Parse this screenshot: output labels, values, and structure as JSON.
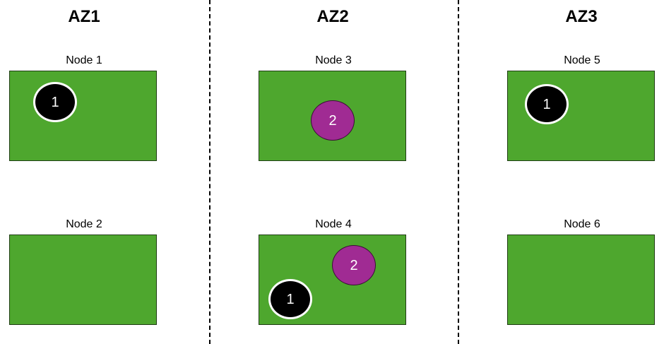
{
  "zones": [
    {
      "label": "AZ1"
    },
    {
      "label": "AZ2"
    },
    {
      "label": "AZ3"
    }
  ],
  "nodes": [
    {
      "label": "Node 1",
      "pods": [
        {
          "label": "1",
          "color": "#000000"
        }
      ]
    },
    {
      "label": "Node 2",
      "pods": []
    },
    {
      "label": "Node 3",
      "pods": [
        {
          "label": "2",
          "color": "#a02b93"
        }
      ]
    },
    {
      "label": "Node 4",
      "pods": [
        {
          "label": "2",
          "color": "#a02b93"
        },
        {
          "label": "1",
          "color": "#000000"
        }
      ]
    },
    {
      "label": "Node 5",
      "pods": [
        {
          "label": "1",
          "color": "#000000"
        }
      ]
    },
    {
      "label": "Node 6",
      "pods": []
    }
  ],
  "colors": {
    "node_fill": "#4ea72e",
    "pod_black": "#000000",
    "pod_purple": "#a02b93"
  }
}
